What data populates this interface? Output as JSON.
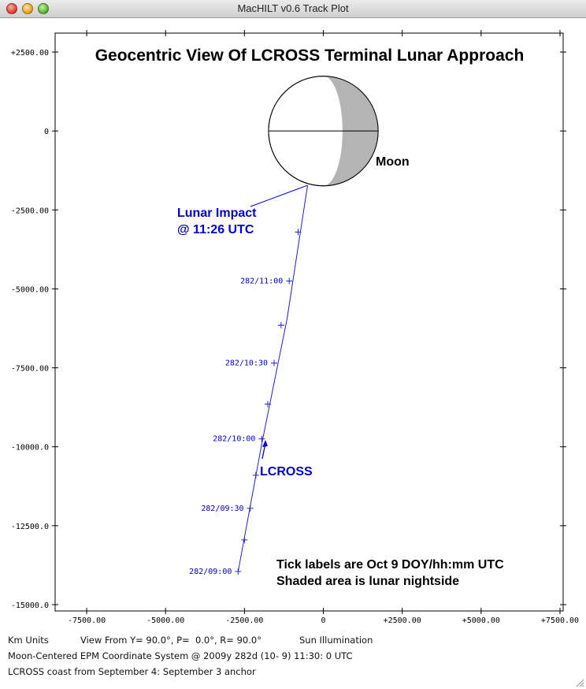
{
  "window": {
    "title": "MacHILT v0.6 Track Plot"
  },
  "status": {
    "units": "Km Units",
    "view": "View From Y= 90.0°, P=  0.0°, R= 90.0°",
    "illumination": "Sun Illumination",
    "system": "Moon-Centered EPM Coordinate System @ 2009y 282d (10- 9) 11:30: 0 UTC",
    "coast": "LCROSS coast from September 4: September 3 anchor"
  },
  "colors": {
    "track": "#2020c8",
    "annotation": "#0000cc",
    "moon_shadow": "#b4b4b4",
    "axis": "#000000"
  },
  "chart_data": {
    "type": "line",
    "title": "Geocentric View Of LCROSS Terminal Lunar Approach",
    "xlabel": "",
    "ylabel": "",
    "xlim": [
      -8500,
      7600
    ],
    "ylim": [
      -15200,
      3100
    ],
    "x_ticks": [
      -7500,
      -5000,
      -2500,
      0,
      2500,
      5000,
      7500
    ],
    "x_tick_labels": [
      "-7500.00",
      "-5000.00",
      "-2500.00",
      "0",
      "+2500.00",
      "+5000.00",
      "+7500.00"
    ],
    "y_ticks": [
      2500,
      0,
      -2500,
      -5000,
      -7500,
      -10000,
      -12500,
      -15000
    ],
    "y_tick_labels": [
      "+2500.00",
      "0",
      "-2500.00",
      "-5000.00",
      "-7500.00",
      "-10000.0",
      "-12500.0",
      "-15000.0"
    ],
    "grid": false,
    "moon": {
      "label": "Moon",
      "center": [
        0,
        0
      ],
      "radius": 1737,
      "shaded": "nightside crescent on right"
    },
    "series": [
      {
        "name": "LCROSS",
        "points": [
          {
            "x": -2700,
            "y": -13950
          },
          {
            "x": -1950,
            "y": -9900
          },
          {
            "x": -1150,
            "y": -5950
          },
          {
            "x": -500,
            "y": -1720
          }
        ],
        "ticks": [
          {
            "x": -2700,
            "y": -13950,
            "label": "282/09:00"
          },
          {
            "x": -2500,
            "y": -12950,
            "label": ""
          },
          {
            "x": -2320,
            "y": -11950,
            "label": "282/09:30"
          },
          {
            "x": -2140,
            "y": -10900,
            "label": ""
          },
          {
            "x": -1950,
            "y": -9750,
            "label": "282/10:00"
          },
          {
            "x": -1760,
            "y": -8650,
            "label": ""
          },
          {
            "x": -1560,
            "y": -7350,
            "label": "282/10:30"
          },
          {
            "x": -1340,
            "y": -6150,
            "label": ""
          },
          {
            "x": -1080,
            "y": -4750,
            "label": "282/11:00"
          },
          {
            "x": -800,
            "y": -3200,
            "label": ""
          }
        ]
      }
    ],
    "annotations": {
      "impact_line1": "Lunar Impact",
      "impact_line2": "@ 11:26 UTC",
      "lcross_label": "LCROSS",
      "note_line1": "Tick labels are Oct 9 DOY/hh:mm UTC",
      "note_line2": "Shaded area is lunar nightside"
    }
  }
}
